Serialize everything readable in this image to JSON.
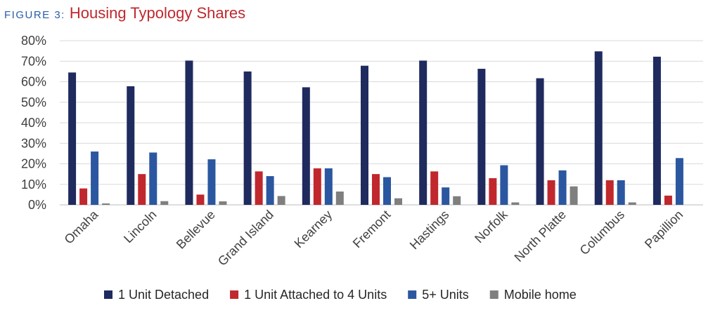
{
  "figure": {
    "label": "FIGURE 3:",
    "title": "Housing Typology Shares",
    "label_color": "#2a5da8",
    "title_color": "#c0282e"
  },
  "chart_data": {
    "type": "bar",
    "title": "Housing Typology Shares",
    "xlabel": "",
    "ylabel": "",
    "ylim": [
      0,
      0.8
    ],
    "yticks": [
      "0%",
      "10%",
      "20%",
      "30%",
      "40%",
      "50%",
      "60%",
      "70%",
      "80%"
    ],
    "grid": true,
    "legend_position": "bottom",
    "categories": [
      "Omaha",
      "Lincoln",
      "Bellevue",
      "Grand Island",
      "Kearney",
      "Fremont",
      "Hastings",
      "Norfolk",
      "North Platte",
      "Columbus",
      "Papillion"
    ],
    "series": [
      {
        "name": "1 Unit Detached",
        "color": "#1f2a5e",
        "values": [
          0.645,
          0.578,
          0.703,
          0.65,
          0.573,
          0.678,
          0.703,
          0.663,
          0.617,
          0.748,
          0.722
        ]
      },
      {
        "name": "1 Unit Attached to 4 Units",
        "color": "#c0282e",
        "values": [
          0.08,
          0.15,
          0.05,
          0.163,
          0.178,
          0.15,
          0.163,
          0.13,
          0.12,
          0.12,
          0.045
        ]
      },
      {
        "name": "5+ Units",
        "color": "#2b57a0",
        "values": [
          0.26,
          0.255,
          0.222,
          0.14,
          0.178,
          0.135,
          0.085,
          0.193,
          0.168,
          0.12,
          0.228
        ]
      },
      {
        "name": "Mobile home",
        "color": "#7f7f7f",
        "values": [
          0.007,
          0.018,
          0.017,
          0.043,
          0.065,
          0.032,
          0.042,
          0.012,
          0.09,
          0.012,
          0.0
        ]
      }
    ]
  }
}
